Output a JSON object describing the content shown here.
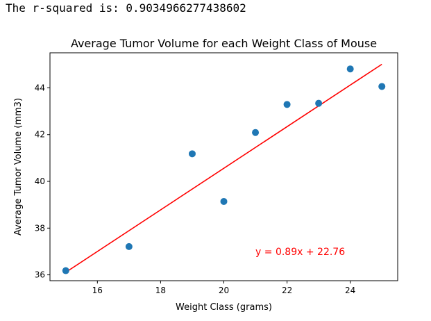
{
  "output": {
    "text": "The r-squared is: 0.9034966277438602"
  },
  "chart_data": {
    "type": "scatter",
    "title": "Average Tumor Volume for each Weight Class of Mouse",
    "xlabel": "Weight Class (grams)",
    "ylabel": "Average Tumor Volume (mm3)",
    "xlim": [
      14.5,
      25.5
    ],
    "ylim": [
      35.75,
      45.5
    ],
    "xticks": [
      16,
      18,
      20,
      22,
      24
    ],
    "yticks": [
      36,
      38,
      40,
      42,
      44
    ],
    "grid": false,
    "points": [
      {
        "x": 15,
        "y": 36.18
      },
      {
        "x": 17,
        "y": 37.21
      },
      {
        "x": 19,
        "y": 41.18
      },
      {
        "x": 20,
        "y": 39.14
      },
      {
        "x": 21,
        "y": 42.09
      },
      {
        "x": 22,
        "y": 43.29
      },
      {
        "x": 23,
        "y": 43.34
      },
      {
        "x": 24,
        "y": 44.81
      },
      {
        "x": 25,
        "y": 44.06
      }
    ],
    "point_color": "#1f77b4",
    "regression": {
      "slope": 0.89,
      "intercept": 22.76,
      "x_range": [
        15,
        25
      ],
      "color": "#ff0000",
      "equation": "y = 0.89x + 22.76",
      "equation_pos": {
        "x": 21,
        "y": 37.0
      }
    }
  }
}
